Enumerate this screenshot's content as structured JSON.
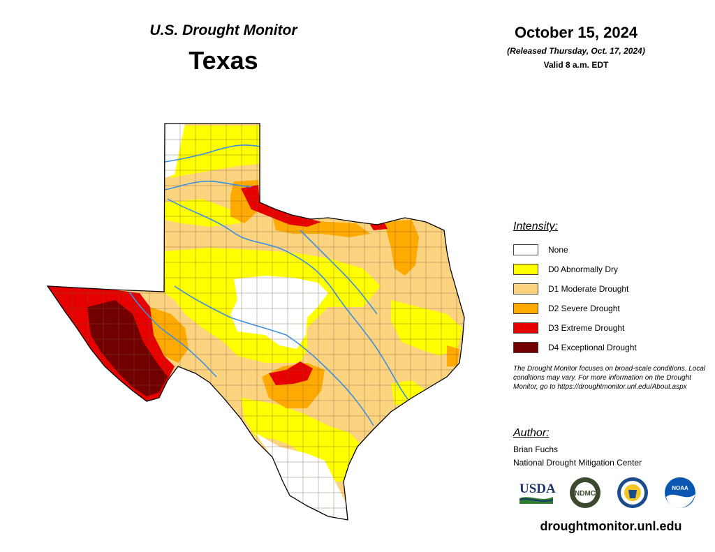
{
  "header": {
    "product": "U.S. Drought Monitor",
    "region": "Texas",
    "date": "October 15, 2024",
    "released": "(Released Thursday, Oct. 17, 2024)",
    "valid": "Valid 8 a.m. EDT"
  },
  "legend": {
    "title": "Intensity:",
    "items": [
      {
        "label": "None",
        "color": "#ffffff"
      },
      {
        "label": "D0 Abnormally Dry",
        "color": "#ffff00"
      },
      {
        "label": "D1 Moderate Drought",
        "color": "#fcd37f"
      },
      {
        "label": "D2 Severe Drought",
        "color": "#ffaa00"
      },
      {
        "label": "D3 Extreme Drought",
        "color": "#e60000"
      },
      {
        "label": "D4 Exceptional Drought",
        "color": "#730000"
      }
    ]
  },
  "note": "The Drought Monitor focuses on broad-scale conditions. Local conditions may vary. For more information on the Drought Monitor, go to https://droughtmonitor.unl.edu/About.aspx",
  "author": {
    "title": "Author:",
    "name": "Brian Fuchs",
    "org": "National Drought Mitigation Center"
  },
  "logos": [
    {
      "name": "usda-logo",
      "text": "USDA"
    },
    {
      "name": "ndmc-logo",
      "text": "NDMC"
    },
    {
      "name": "doc-seal-logo",
      "text": ""
    },
    {
      "name": "noaa-logo",
      "text": "NOAA"
    }
  ],
  "website": "droughtmonitor.unl.edu",
  "colors": {
    "river": "#3c8fe0",
    "county_line": "#7a5a3a",
    "state_outline": "#000000"
  }
}
